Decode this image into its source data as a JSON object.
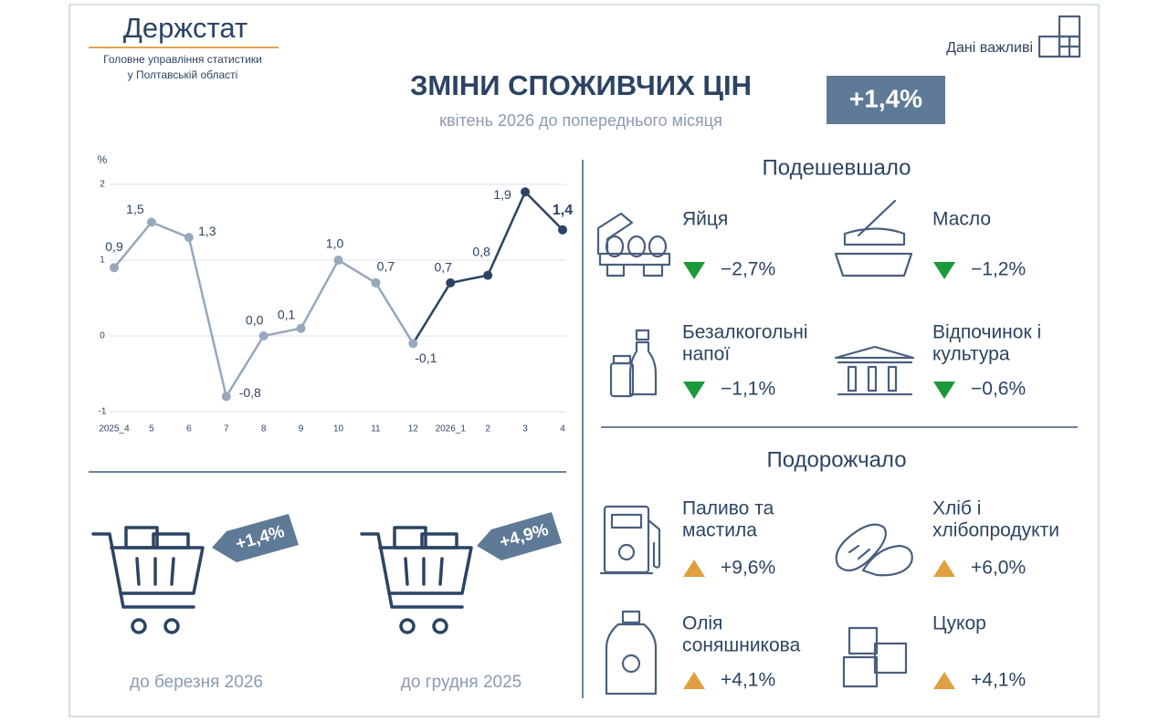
{
  "header": {
    "logo": "Держстат",
    "org": [
      "Головне управління статистики",
      "у Полтавській області"
    ],
    "tag": "Дані важливі"
  },
  "title": "ЗМІНИ СПОЖИВЧИХ ЦІН",
  "subtitle": "квітень 2026 до попереднього місяця",
  "headline": "+1,4%",
  "chart_data": {
    "type": "line",
    "y_label": "%",
    "categories": [
      "2025_4",
      "5",
      "6",
      "7",
      "8",
      "9",
      "10",
      "11",
      "12",
      "2026_1",
      "2",
      "3",
      "4"
    ],
    "values": [
      0.9,
      1.5,
      1.3,
      -0.8,
      0,
      0.1,
      1.0,
      0.7,
      -0.1,
      0.7,
      0.8,
      1.9,
      1.4
    ],
    "value_labels": [
      "0,9",
      "1,5",
      "1,3",
      "-0,8",
      "0,0",
      "0,1",
      "1,0",
      "0,7",
      "-0,1",
      "0,7",
      "0,8",
      "1,9",
      "1,4"
    ],
    "ylim": [
      -1,
      2
    ],
    "yticks": [
      -1,
      0,
      1,
      2
    ],
    "grid": true,
    "color": "#97a8bc",
    "recent_color": "#2c4463",
    "recent_from": 8
  },
  "baskets": [
    {
      "value": "+1,4%",
      "label": "до березня 2026"
    },
    {
      "value": "+4,9%",
      "label": "до грудня 2025"
    }
  ],
  "sections": [
    {
      "title": "Подешевшало",
      "items": [
        {
          "name": [
            "Яйця"
          ],
          "value": "−2,7%"
        },
        {
          "name": [
            "Масло"
          ],
          "value": "−1,2%"
        },
        {
          "name": [
            "Безалкогольні",
            "напої"
          ],
          "value": "−1,1%"
        },
        {
          "name": [
            "Відпочинок і",
            "культура"
          ],
          "value": "−0,6%"
        }
      ]
    },
    {
      "title": "Подорожчало",
      "items": [
        {
          "name": [
            "Паливо та",
            "мастила"
          ],
          "value": "+9,6%"
        },
        {
          "name": [
            "Хліб і",
            "хлібопродукти"
          ],
          "value": "+6,0%"
        },
        {
          "name": [
            "Олія",
            "соняшникова"
          ],
          "value": "+4,1%"
        },
        {
          "name": [
            "Цукор"
          ],
          "value": "+4,1%"
        }
      ]
    }
  ]
}
